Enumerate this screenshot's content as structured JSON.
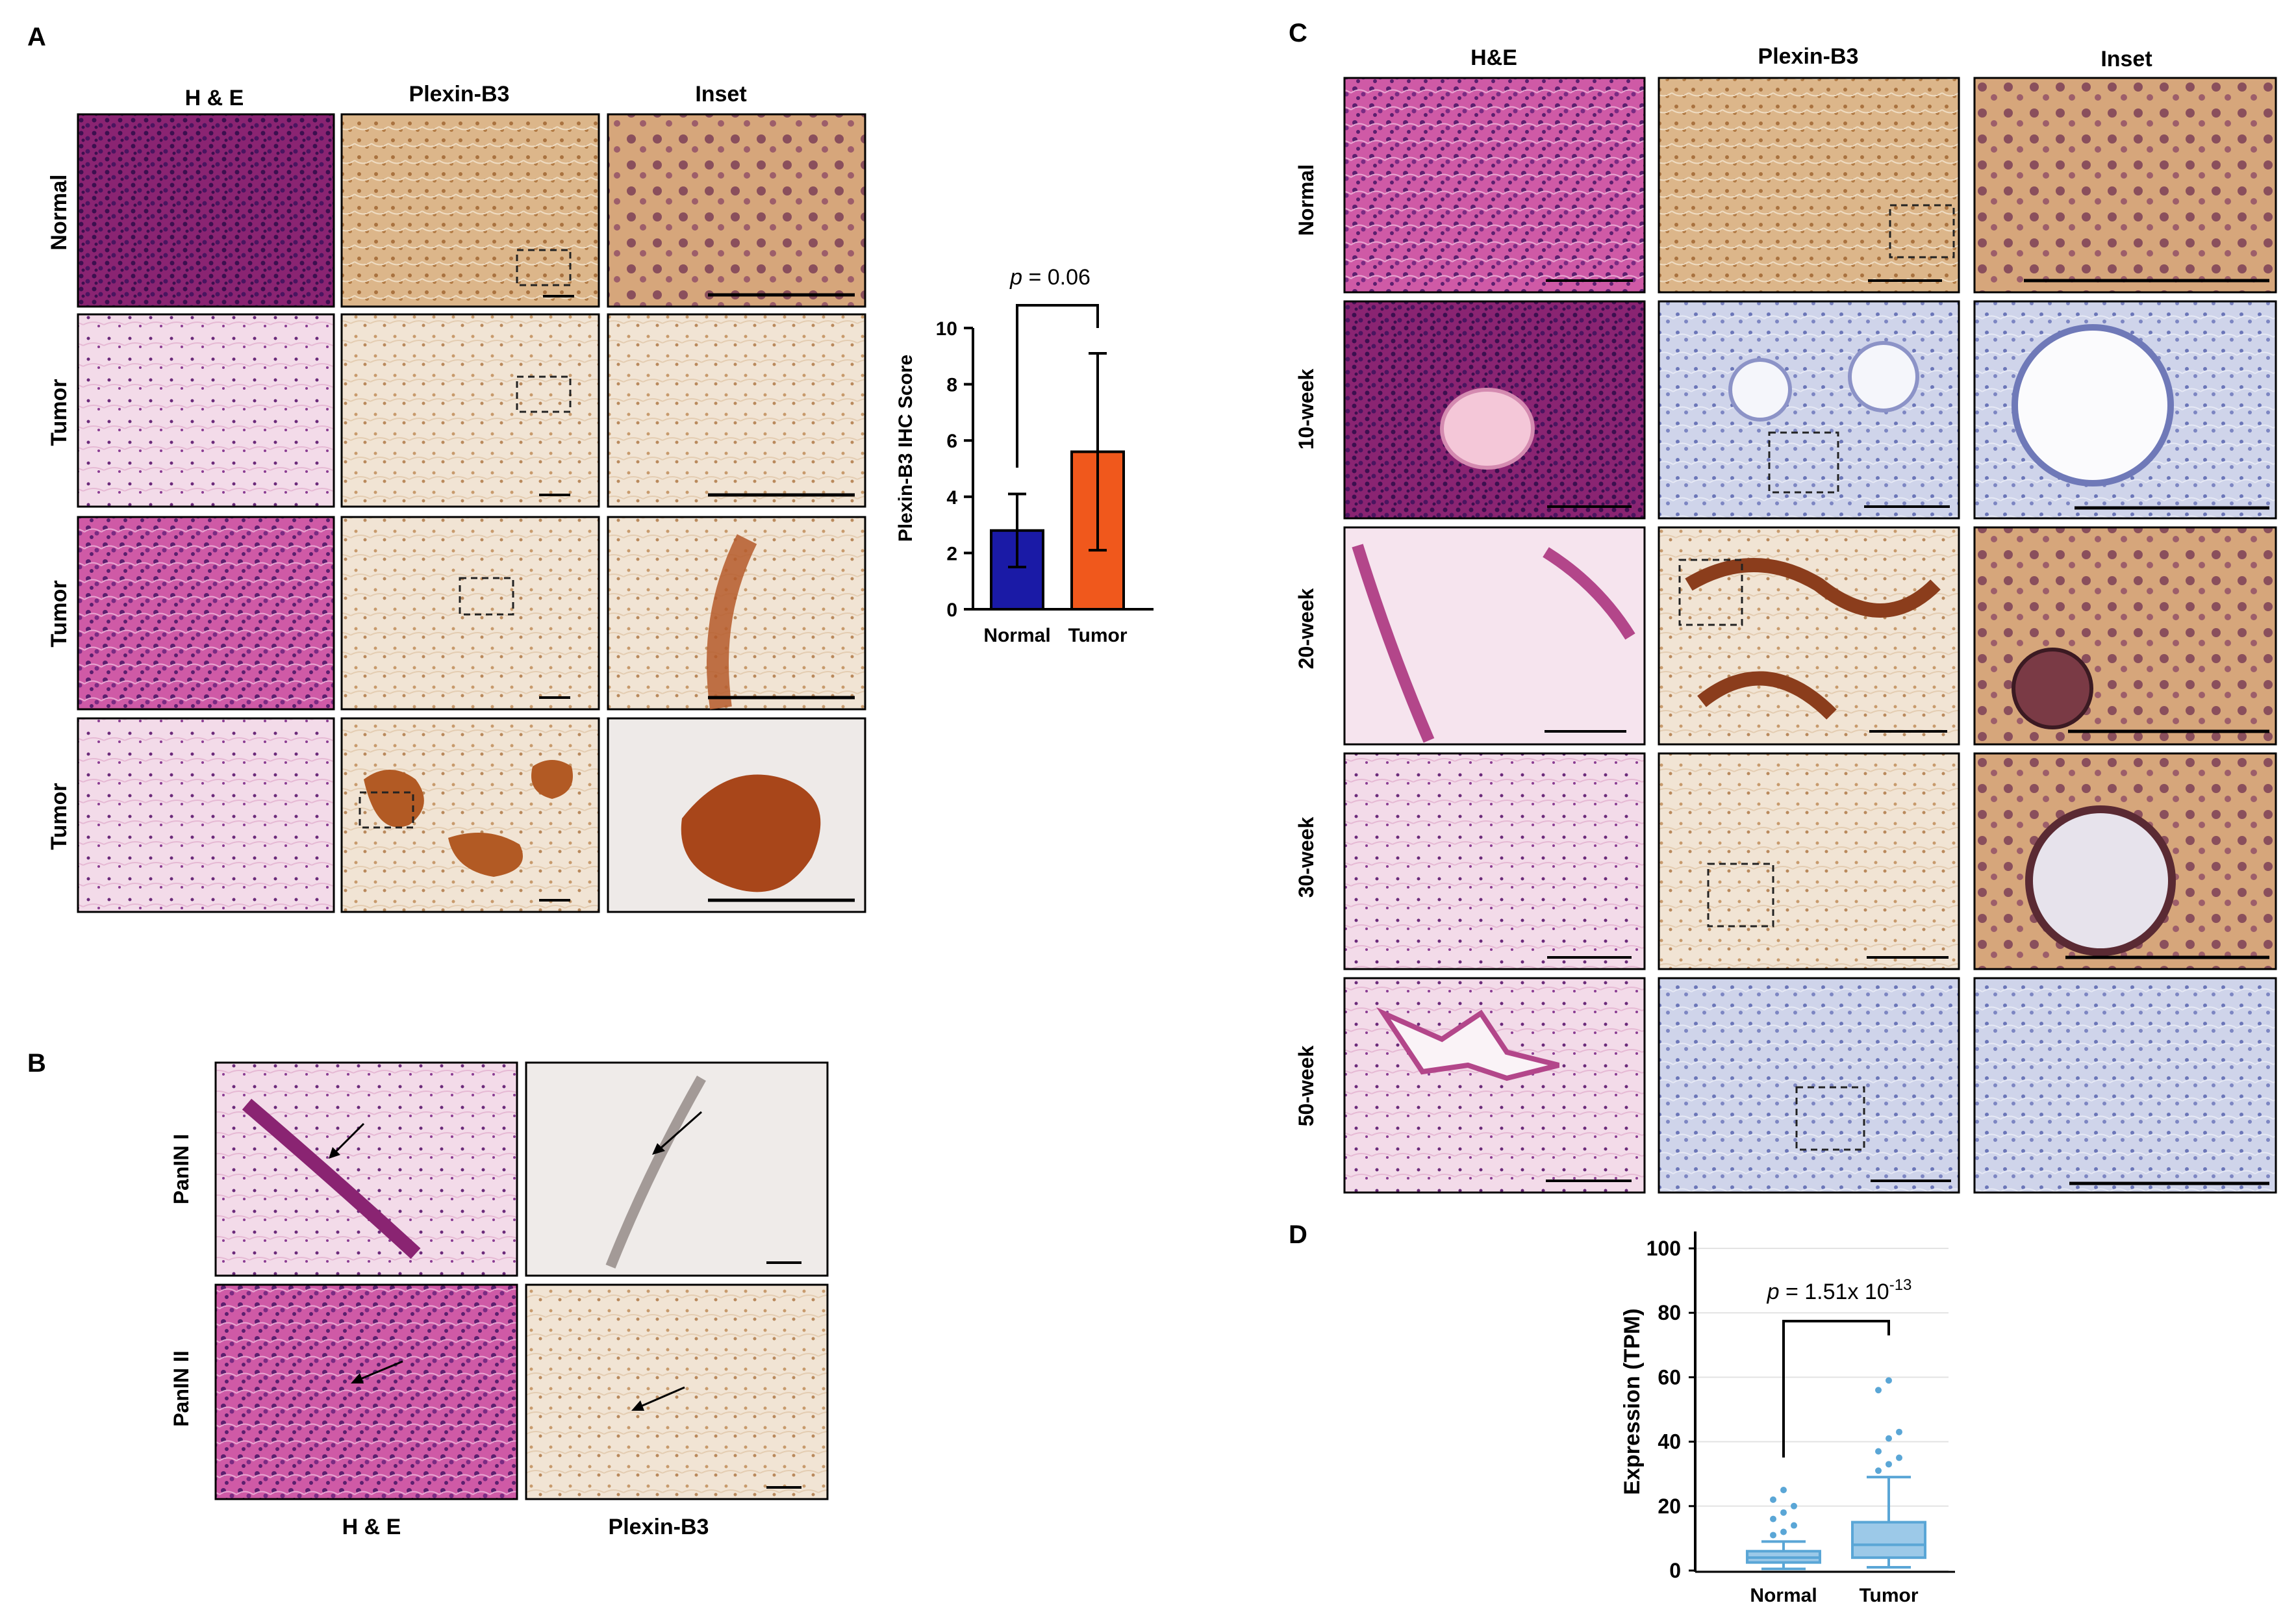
{
  "panel_labels": {
    "a": "A",
    "b": "B",
    "c": "C",
    "d": "D"
  },
  "panel_a": {
    "columns": [
      "H & E",
      "Plexin-B3",
      "Inset"
    ],
    "rows": [
      "Normal",
      "Tumor",
      "Tumor",
      "Tumor"
    ],
    "colors": {
      "he": "#a2286e",
      "plexin": "#c58b4e",
      "background": "#ffffff"
    }
  },
  "panel_b": {
    "rows": [
      "PanIN I",
      "PanIN II"
    ],
    "columns": [
      "H & E",
      "Plexin-B3"
    ]
  },
  "panel_c": {
    "columns": [
      "H&E",
      "Plexin-B3",
      "Inset"
    ],
    "rows": [
      "Normal",
      "10-week",
      "20-week",
      "30-week",
      "50-week"
    ]
  },
  "chart_data": [
    {
      "type": "bar",
      "panel": "A",
      "categories": [
        "Normal",
        "Tumor"
      ],
      "values": [
        2.8,
        5.6
      ],
      "error": [
        1.3,
        3.5
      ],
      "colors": [
        "#1a1aa6",
        "#f0581c"
      ],
      "ylabel": "Plexin-B3 IHC Score",
      "ylim": [
        0,
        10
      ],
      "yticks": [
        "0",
        "2",
        "4",
        "6",
        "8",
        "10"
      ],
      "annotation": {
        "p_label": "p",
        "p_value": " = 0.06"
      }
    },
    {
      "type": "box",
      "panel": "D",
      "categories": [
        "Normal",
        "Tumor"
      ],
      "ylabel": "Expression (TPM)",
      "ylim": [
        0,
        100
      ],
      "yticks": [
        "0",
        "20",
        "40",
        "60",
        "80",
        "100"
      ],
      "grid": true,
      "color": "#5aa6d6",
      "boxes": [
        {
          "name": "Normal",
          "min": 0.5,
          "q1": 2.5,
          "median": 4,
          "q3": 6,
          "max": 9,
          "outliers": [
            11,
            12,
            14,
            16,
            18,
            20,
            22,
            25
          ]
        },
        {
          "name": "Tumor",
          "min": 1,
          "q1": 4,
          "median": 8,
          "q3": 15,
          "max": 29,
          "outliers": [
            31,
            33,
            35,
            37,
            41,
            43,
            56,
            59
          ]
        }
      ],
      "annotation": {
        "p_label": "p",
        "p_value": " = 1.51x 10",
        "p_exp": "-13"
      }
    }
  ]
}
